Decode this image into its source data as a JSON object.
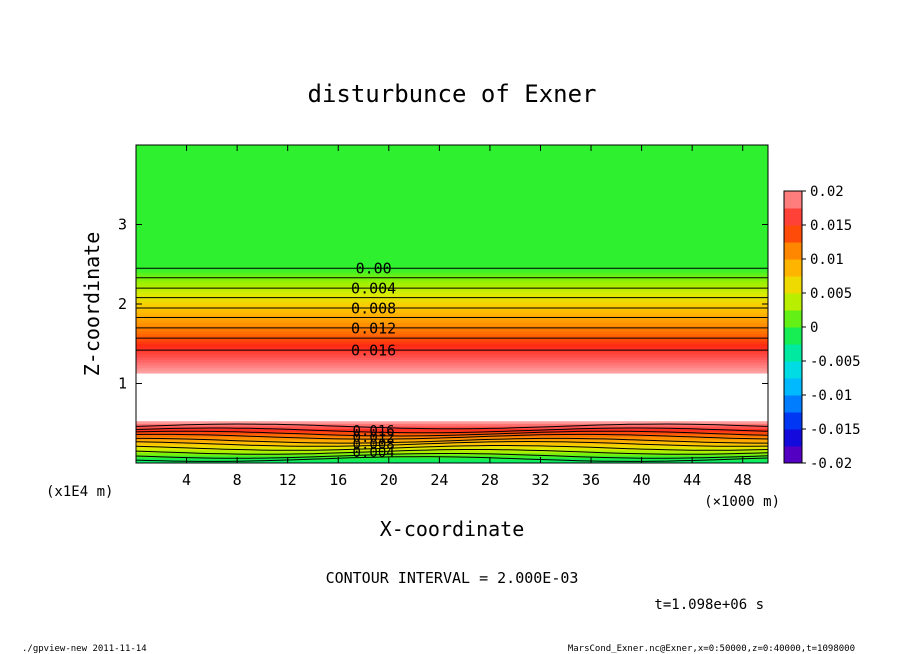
{
  "chart_data": {
    "type": "heatmap",
    "title": "disturbunce of Exner",
    "xlabel": "X-coordinate",
    "ylabel": "Z-coordinate",
    "x_unit_label": "(×1000 m)",
    "y_unit_label": "(x1E4 m)",
    "xlim": [
      0,
      50
    ],
    "ylim": [
      0,
      4
    ],
    "x_ticks": [
      "4",
      "8",
      "12",
      "16",
      "20",
      "24",
      "28",
      "32",
      "36",
      "40",
      "44",
      "48"
    ],
    "y_ticks": [
      "1",
      "2",
      "3"
    ],
    "colorbar": {
      "range": [
        -0.02,
        0.02
      ],
      "tick_labels": [
        "0.02",
        "0.015",
        "0.01",
        "0.005",
        "0",
        "-0.005",
        "-0.01",
        "-0.015",
        "-0.02"
      ],
      "tick_values": [
        0.02,
        0.015,
        0.01,
        0.005,
        0,
        -0.005,
        -0.01,
        -0.015,
        -0.02
      ]
    },
    "contour_labels_upper": [
      {
        "text": "0.00",
        "z": 2.45
      },
      {
        "text": "0.004",
        "z": 2.2
      },
      {
        "text": "0.008",
        "z": 1.95
      },
      {
        "text": "0.012",
        "z": 1.7
      },
      {
        "text": "0.016",
        "z": 1.42
      }
    ],
    "contour_labels_lower": [
      {
        "text": "0.016",
        "z": 0.41
      },
      {
        "text": "0.012",
        "z": 0.33
      },
      {
        "text": "0.008",
        "z": 0.24
      },
      {
        "text": "0.004",
        "z": 0.14
      }
    ],
    "colors": {
      "green": "#2ef02e",
      "white_region": "#ffffff"
    },
    "contour_interval": "CONTOUR INTERVAL = 2.000E-03",
    "time_label": "t=1.098e+06 s"
  },
  "footer": {
    "left": "./gpview-new  2011-11-14",
    "right": "MarsCond_Exner.nc@Exner,x=0:50000,z=0:40000,t=1098000"
  }
}
